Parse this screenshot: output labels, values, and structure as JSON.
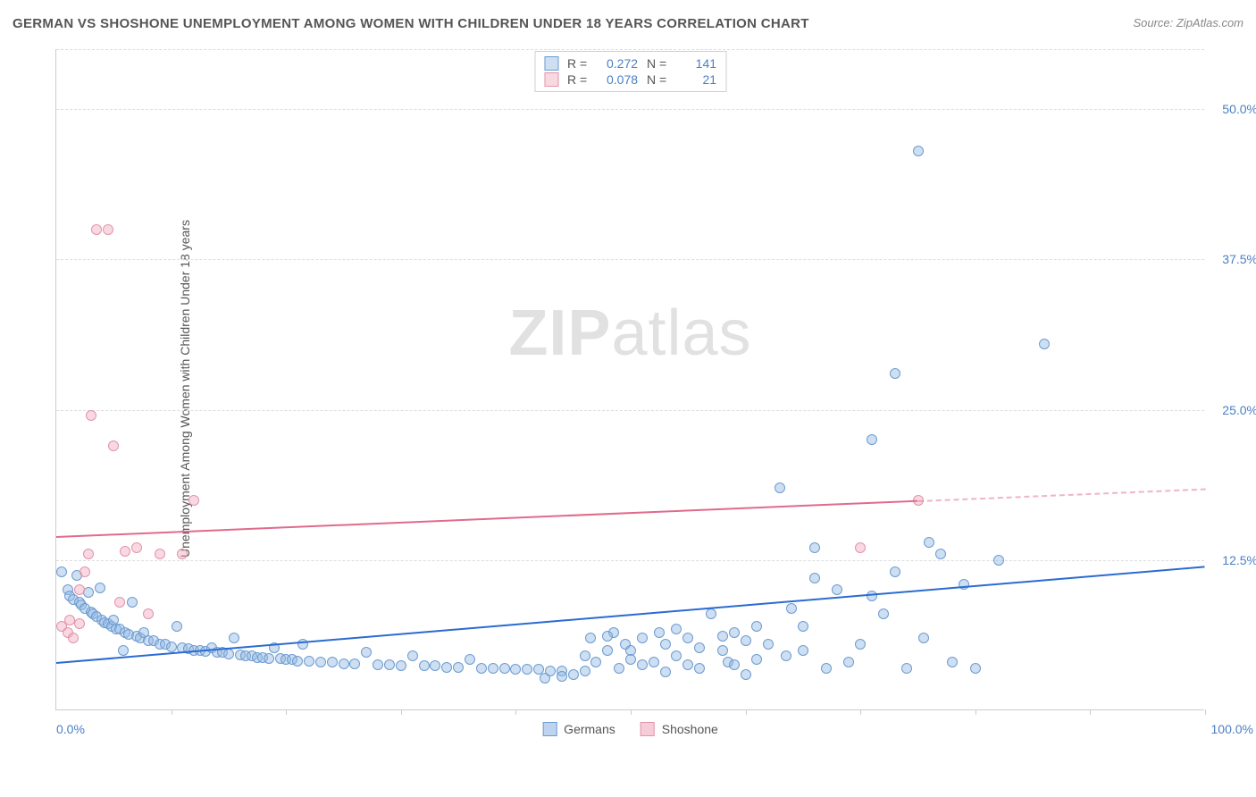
{
  "title": "GERMAN VS SHOSHONE UNEMPLOYMENT AMONG WOMEN WITH CHILDREN UNDER 18 YEARS CORRELATION CHART",
  "source": "Source: ZipAtlas.com",
  "watermark": {
    "zip": "ZIP",
    "atlas": "atlas"
  },
  "chart": {
    "type": "scatter",
    "ylabel": "Unemployment Among Women with Children Under 18 years",
    "xlim": [
      0,
      100
    ],
    "ylim": [
      0,
      55
    ],
    "ytick_labels": [
      "12.5%",
      "25.0%",
      "37.5%",
      "50.0%"
    ],
    "ytick_values": [
      12.5,
      25.0,
      37.5,
      50.0
    ],
    "xaxis_left_label": "0.0%",
    "xaxis_right_label": "100.0%",
    "xtick_positions": [
      10,
      20,
      30,
      40,
      50,
      60,
      70,
      80,
      90,
      100
    ],
    "background_color": "#ffffff",
    "grid_color": "#dddddd",
    "axis_color": "#cccccc",
    "label_color": "#555555",
    "tick_label_color": "#4a7fc4",
    "point_radius": 6,
    "series": [
      {
        "name": "Germans",
        "fill": "rgba(147,184,227,0.45)",
        "stroke": "#6b9bd1",
        "trend_color": "#2b6bd1",
        "trend": {
          "x1": 0,
          "y1": 4.0,
          "x2": 100,
          "y2": 12.0
        },
        "R": "0.272",
        "N": "141",
        "points": [
          [
            0.5,
            11.5
          ],
          [
            1,
            10
          ],
          [
            1.2,
            9.5
          ],
          [
            1.5,
            9.2
          ],
          [
            1.8,
            11.2
          ],
          [
            2,
            9
          ],
          [
            2.2,
            8.8
          ],
          [
            2.5,
            8.5
          ],
          [
            2.8,
            9.8
          ],
          [
            3,
            8.2
          ],
          [
            3.2,
            8
          ],
          [
            3.5,
            7.8
          ],
          [
            3.8,
            10.2
          ],
          [
            4,
            7.5
          ],
          [
            4.2,
            7.3
          ],
          [
            4.5,
            7.2
          ],
          [
            4.8,
            7
          ],
          [
            5,
            7.5
          ],
          [
            5.2,
            6.8
          ],
          [
            5.5,
            6.8
          ],
          [
            5.8,
            5
          ],
          [
            6,
            6.5
          ],
          [
            6.3,
            6.3
          ],
          [
            6.6,
            9
          ],
          [
            7,
            6.2
          ],
          [
            7.3,
            6
          ],
          [
            7.6,
            6.5
          ],
          [
            8,
            5.8
          ],
          [
            8.5,
            5.8
          ],
          [
            9,
            5.5
          ],
          [
            9.5,
            5.5
          ],
          [
            10,
            5.3
          ],
          [
            10.5,
            7
          ],
          [
            11,
            5.2
          ],
          [
            11.5,
            5.1
          ],
          [
            12,
            5
          ],
          [
            12.5,
            5
          ],
          [
            13,
            4.9
          ],
          [
            13.5,
            5.2
          ],
          [
            14,
            4.8
          ],
          [
            14.5,
            4.8
          ],
          [
            15,
            4.7
          ],
          [
            15.5,
            6
          ],
          [
            16,
            4.6
          ],
          [
            16.5,
            4.5
          ],
          [
            17,
            4.5
          ],
          [
            17.5,
            4.4
          ],
          [
            18,
            4.4
          ],
          [
            18.5,
            4.3
          ],
          [
            19,
            5.2
          ],
          [
            19.5,
            4.3
          ],
          [
            20,
            4.2
          ],
          [
            20.5,
            4.2
          ],
          [
            21,
            4.1
          ],
          [
            21.5,
            5.5
          ],
          [
            22,
            4.1
          ],
          [
            23,
            4
          ],
          [
            24,
            4
          ],
          [
            25,
            3.9
          ],
          [
            26,
            3.9
          ],
          [
            27,
            4.8
          ],
          [
            28,
            3.8
          ],
          [
            29,
            3.8
          ],
          [
            30,
            3.7
          ],
          [
            31,
            4.5
          ],
          [
            32,
            3.7
          ],
          [
            33,
            3.7
          ],
          [
            34,
            3.6
          ],
          [
            35,
            3.6
          ],
          [
            36,
            4.2
          ],
          [
            37,
            3.5
          ],
          [
            38,
            3.5
          ],
          [
            39,
            3.5
          ],
          [
            40,
            3.4
          ],
          [
            41,
            3.4
          ],
          [
            42,
            3.4
          ],
          [
            42.5,
            2.7
          ],
          [
            43,
            3.3
          ],
          [
            44,
            3.3
          ],
          [
            45,
            3
          ],
          [
            46,
            4.5
          ],
          [
            46.5,
            6
          ],
          [
            47,
            4
          ],
          [
            48,
            5
          ],
          [
            48.5,
            6.5
          ],
          [
            49,
            3.5
          ],
          [
            49.5,
            5.5
          ],
          [
            50,
            5
          ],
          [
            51,
            6
          ],
          [
            52,
            4
          ],
          [
            52.5,
            6.5
          ],
          [
            53,
            5.5
          ],
          [
            54,
            4.5
          ],
          [
            55,
            6
          ],
          [
            56,
            3.5
          ],
          [
            57,
            8
          ],
          [
            58,
            5
          ],
          [
            58.5,
            4
          ],
          [
            59,
            6.5
          ],
          [
            60,
            3
          ],
          [
            61,
            7
          ],
          [
            62,
            5.5
          ],
          [
            63,
            18.5
          ],
          [
            63.5,
            4.5
          ],
          [
            64,
            8.5
          ],
          [
            65,
            7
          ],
          [
            66,
            13.5
          ],
          [
            66,
            11
          ],
          [
            67,
            3.5
          ],
          [
            68,
            10
          ],
          [
            69,
            4
          ],
          [
            70,
            5.5
          ],
          [
            71,
            9.5
          ],
          [
            71,
            22.5
          ],
          [
            72,
            8
          ],
          [
            73,
            11.5
          ],
          [
            73,
            28
          ],
          [
            74,
            3.5
          ],
          [
            75,
            46.5
          ],
          [
            75.5,
            6
          ],
          [
            76,
            14
          ],
          [
            77,
            13
          ],
          [
            78,
            4
          ],
          [
            79,
            10.5
          ],
          [
            80,
            3.5
          ],
          [
            82,
            12.5
          ],
          [
            86,
            30.5
          ],
          [
            48,
            6.2
          ],
          [
            51,
            3.8
          ],
          [
            54,
            6.8
          ],
          [
            56,
            5.2
          ],
          [
            59,
            3.8
          ],
          [
            61,
            4.2
          ],
          [
            44,
            2.8
          ],
          [
            46,
            3.3
          ],
          [
            50,
            4.2
          ],
          [
            53,
            3.2
          ],
          [
            55,
            3.8
          ],
          [
            58,
            6.2
          ],
          [
            60,
            5.8
          ],
          [
            65,
            5
          ]
        ]
      },
      {
        "name": "Shoshone",
        "fill": "rgba(240,170,190,0.45)",
        "stroke": "#e193ab",
        "trend_color": "#e06b8c",
        "trend": {
          "x1": 0,
          "y1": 14.5,
          "x2": 75,
          "y2": 17.5
        },
        "trend_dashed": {
          "x1": 75,
          "y1": 17.5,
          "x2": 100,
          "y2": 18.5
        },
        "R": "0.078",
        "N": "21",
        "points": [
          [
            0.5,
            7
          ],
          [
            1,
            6.5
          ],
          [
            1.2,
            7.5
          ],
          [
            1.5,
            6
          ],
          [
            2,
            7.2
          ],
          [
            2,
            10
          ],
          [
            2.5,
            11.5
          ],
          [
            2.8,
            13
          ],
          [
            3,
            24.5
          ],
          [
            3.5,
            40
          ],
          [
            4.5,
            40
          ],
          [
            5,
            22
          ],
          [
            5.5,
            9
          ],
          [
            6,
            13.2
          ],
          [
            7,
            13.5
          ],
          [
            8,
            8
          ],
          [
            9,
            13
          ],
          [
            11,
            13
          ],
          [
            12,
            17.5
          ],
          [
            70,
            13.5
          ],
          [
            75,
            17.5
          ]
        ]
      }
    ],
    "bottom_legend": [
      {
        "label": "Germans",
        "fill": "rgba(147,184,227,0.6)",
        "stroke": "#6b9bd1"
      },
      {
        "label": "Shoshone",
        "fill": "rgba(240,170,190,0.6)",
        "stroke": "#e193ab"
      }
    ]
  }
}
